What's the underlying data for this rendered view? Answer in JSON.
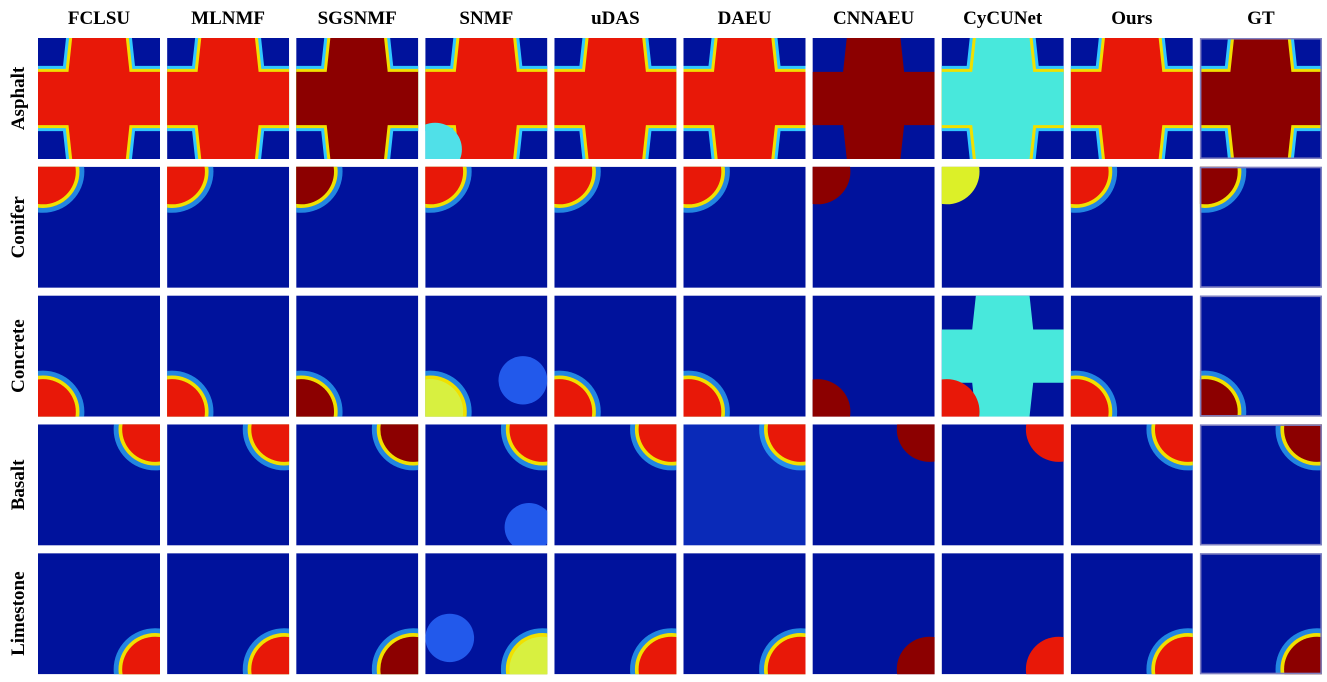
{
  "column_headers": [
    "FCLSU",
    "MLNMF",
    "SGSNMF",
    "SNMF",
    "uDAS",
    "DAEU",
    "CNNAEU",
    "CyCUNet",
    "Ours",
    "GT"
  ],
  "row_labels": [
    "Asphalt",
    "Conifer",
    "Concrete",
    "Basalt",
    "Limestone"
  ]
}
